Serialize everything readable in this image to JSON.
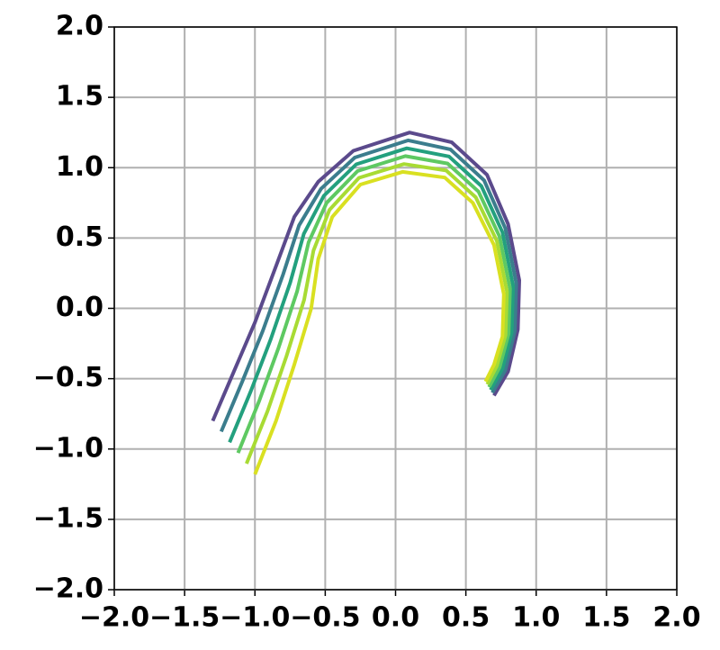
{
  "chart_data": {
    "type": "line",
    "grid": true,
    "xlim": [
      -2.0,
      2.0
    ],
    "ylim": [
      -2.0,
      2.0
    ],
    "xticks": [
      {
        "value": -2.0,
        "label": "−2.0"
      },
      {
        "value": -1.5,
        "label": "−1.5"
      },
      {
        "value": -1.0,
        "label": "−1.0"
      },
      {
        "value": -0.5,
        "label": "−0.5"
      },
      {
        "value": 0.0,
        "label": "0.0"
      },
      {
        "value": 0.5,
        "label": "0.5"
      },
      {
        "value": 1.0,
        "label": "1.0"
      },
      {
        "value": 1.5,
        "label": "1.5"
      },
      {
        "value": 2.0,
        "label": "2.0"
      }
    ],
    "yticks": [
      {
        "value": -2.0,
        "label": "−2.0"
      },
      {
        "value": -1.5,
        "label": "−1.5"
      },
      {
        "value": -1.0,
        "label": "−1.0"
      },
      {
        "value": -0.5,
        "label": "−0.5"
      },
      {
        "value": 0.0,
        "label": "0.0"
      },
      {
        "value": 0.5,
        "label": "0.5"
      },
      {
        "value": 1.0,
        "label": "1.0"
      },
      {
        "value": 1.5,
        "label": "1.5"
      },
      {
        "value": 2.0,
        "label": "2.0"
      }
    ],
    "series": [
      {
        "color": "#5b4a8c",
        "x": [
          -1.3,
          -1.15,
          -1.0,
          -0.85,
          -0.72,
          -0.55,
          -0.3,
          0.1,
          0.4,
          0.65,
          0.8,
          0.88,
          0.87,
          0.8,
          0.7
        ],
        "values": [
          -0.8,
          -0.45,
          -0.1,
          0.3,
          0.65,
          0.9,
          1.12,
          1.25,
          1.18,
          0.95,
          0.6,
          0.2,
          -0.15,
          -0.45,
          -0.62
        ]
      },
      {
        "color": "#3b7d8d",
        "x": [
          -1.24,
          -1.09,
          -0.944,
          -0.8,
          -0.686,
          -0.53,
          -0.29,
          0.09,
          0.39,
          0.63,
          0.78,
          0.858,
          0.848,
          0.78,
          0.688
        ],
        "values": [
          -0.876,
          -0.52,
          -0.16,
          0.24,
          0.59,
          0.85,
          1.072,
          1.194,
          1.13,
          0.91,
          0.57,
          0.18,
          -0.16,
          -0.44,
          -0.6
        ]
      },
      {
        "color": "#23a07e",
        "x": [
          -1.18,
          -1.03,
          -0.888,
          -0.75,
          -0.652,
          -0.51,
          -0.28,
          0.08,
          0.38,
          0.61,
          0.76,
          0.836,
          0.826,
          0.76,
          0.676
        ],
        "values": [
          -0.952,
          -0.59,
          -0.22,
          0.18,
          0.53,
          0.8,
          1.024,
          1.138,
          1.08,
          0.87,
          0.54,
          0.16,
          -0.17,
          -0.43,
          -0.58
        ]
      },
      {
        "color": "#5ec962",
        "x": [
          -1.12,
          -0.97,
          -0.832,
          -0.7,
          -0.618,
          -0.49,
          -0.27,
          0.07,
          0.37,
          0.59,
          0.74,
          0.814,
          0.804,
          0.74,
          0.664
        ],
        "values": [
          -1.028,
          -0.66,
          -0.28,
          0.12,
          0.47,
          0.75,
          0.976,
          1.082,
          1.03,
          0.83,
          0.51,
          0.14,
          -0.18,
          -0.42,
          -0.56
        ]
      },
      {
        "color": "#a8db34",
        "x": [
          -1.06,
          -0.91,
          -0.776,
          -0.65,
          -0.584,
          -0.47,
          -0.26,
          0.06,
          0.36,
          0.57,
          0.72,
          0.792,
          0.782,
          0.72,
          0.652
        ],
        "values": [
          -1.104,
          -0.73,
          -0.34,
          0.06,
          0.41,
          0.7,
          0.928,
          1.026,
          0.98,
          0.79,
          0.48,
          0.12,
          -0.19,
          -0.41,
          -0.54
        ]
      },
      {
        "color": "#d9e021",
        "x": [
          -1.0,
          -0.85,
          -0.72,
          -0.6,
          -0.55,
          -0.45,
          -0.25,
          0.05,
          0.35,
          0.55,
          0.7,
          0.77,
          0.76,
          0.7,
          0.64
        ],
        "values": [
          -1.18,
          -0.8,
          -0.4,
          0.0,
          0.35,
          0.65,
          0.88,
          0.97,
          0.93,
          0.75,
          0.45,
          0.1,
          -0.2,
          -0.4,
          -0.52
        ]
      }
    ]
  }
}
